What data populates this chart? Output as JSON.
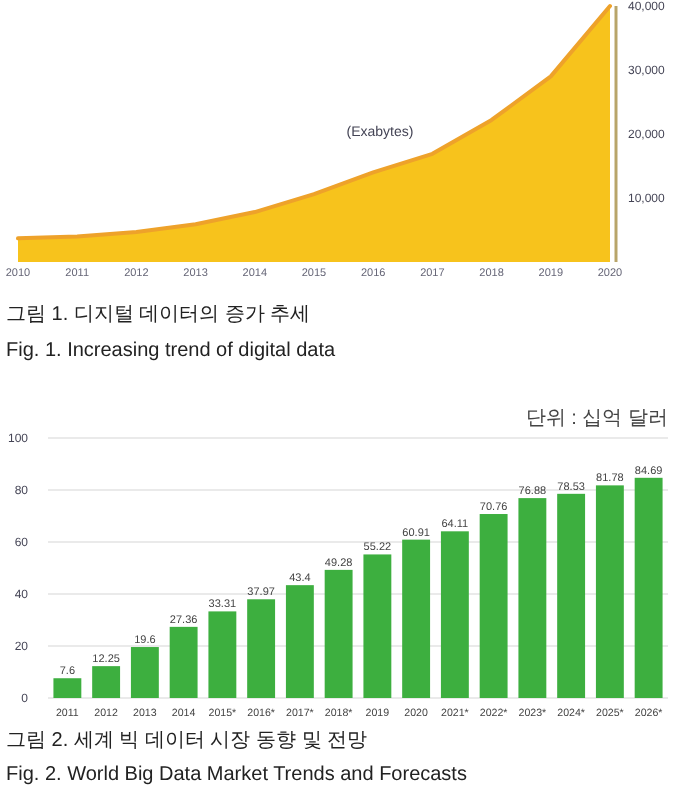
{
  "chart_data": [
    {
      "type": "area",
      "x": [
        2010,
        2011,
        2012,
        2013,
        2014,
        2015,
        2016,
        2017,
        2018,
        2019,
        2020
      ],
      "values": [
        3700,
        4000,
        4700,
        5900,
        7800,
        10600,
        14000,
        16900,
        22200,
        29000,
        40000
      ],
      "color": "#f7c31c",
      "xlim": [
        2010,
        2020
      ],
      "xticks": [
        2010,
        2011,
        2012,
        2013,
        2014,
        2015,
        2016,
        2017,
        2018,
        2019,
        2020
      ],
      "ylim": [
        0,
        40000
      ],
      "yticks": [
        {
          "value": 10000,
          "label": "10,000"
        },
        {
          "value": 20000,
          "label": "20,000"
        },
        {
          "value": 30000,
          "label": "30,000"
        },
        {
          "value": 40000,
          "label": "40,000"
        }
      ],
      "annotations": [
        "(Exabytes)",
        "그림 1. 디지털 데이터의 증가 추세",
        "Fig. 1. Increasing trend of digital data"
      ]
    },
    {
      "type": "bar",
      "categories": [
        "2011",
        "2012",
        "2013",
        "2014",
        "2015*",
        "2016*",
        "2017*",
        "2018*",
        "2019",
        "2020",
        "2021*",
        "2022*",
        "2023*",
        "2024*",
        "2025*",
        "2026*"
      ],
      "values": [
        7.6,
        12.25,
        19.6,
        27.36,
        33.31,
        37.97,
        43.4,
        49.28,
        55.22,
        60.91,
        64.11,
        70.76,
        76.88,
        78.53,
        81.78,
        84.69
      ],
      "color": "#3daf3f",
      "ylim": [
        0,
        100
      ],
      "yticks": [
        0,
        20,
        40,
        60,
        80,
        100
      ],
      "grid": "y",
      "data_labels": true,
      "annotations": [
        "단위 : 십억 달러",
        "그림 2. 세계 빅 데이터 시장 동향 및 전망",
        "Fig. 2. World Big Data Market Trends and Forecasts"
      ]
    }
  ]
}
